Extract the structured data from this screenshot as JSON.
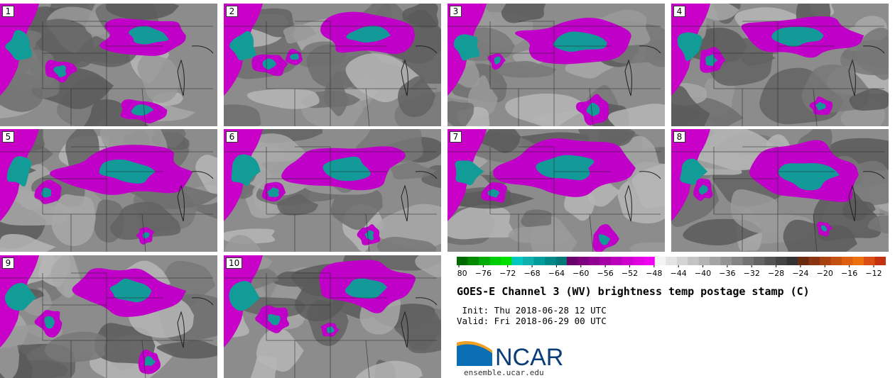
{
  "panels": [
    {
      "label": "1"
    },
    {
      "label": "2"
    },
    {
      "label": "3"
    },
    {
      "label": "4"
    },
    {
      "label": "5"
    },
    {
      "label": "6"
    },
    {
      "label": "7"
    },
    {
      "label": "8"
    },
    {
      "label": "9"
    },
    {
      "label": "10"
    }
  ],
  "colorbar": {
    "ticks": [
      "−80",
      "−76",
      "−72",
      "−68",
      "−64",
      "−60",
      "−56",
      "−52",
      "−48",
      "−44",
      "−40",
      "−36",
      "−32",
      "−28",
      "−24",
      "−20",
      "−16",
      "−12"
    ],
    "colors": [
      "#006a00",
      "#008a00",
      "#00aa00",
      "#00cc00",
      "#00e000",
      "#00c8c0",
      "#10b0b0",
      "#009c9c",
      "#008888",
      "#007878",
      "#6a006a",
      "#7e007e",
      "#920092",
      "#a600a6",
      "#ba00ba",
      "#ce00ce",
      "#e000e0",
      "#f000f0",
      "#f4f4f4",
      "#e4e4e4",
      "#d4d4d4",
      "#c4c4c4",
      "#b4b4b4",
      "#a4a4a4",
      "#949494",
      "#848484",
      "#747474",
      "#646464",
      "#545454",
      "#444444",
      "#343434",
      "#6a2a12",
      "#8a3410",
      "#a8420e",
      "#c4500e",
      "#dc600e",
      "#ea7010",
      "#d84e14",
      "#c43010"
    ]
  },
  "title": "GOES-E Channel 3 (WV) brightness temp postage stamp (C)",
  "init": " Init: Thu 2018-06-28 12 UTC",
  "valid": "Valid: Fri 2018-06-29 00 UTC",
  "logo_text": "NCAR",
  "url": "ensemble.ucar.edu"
}
